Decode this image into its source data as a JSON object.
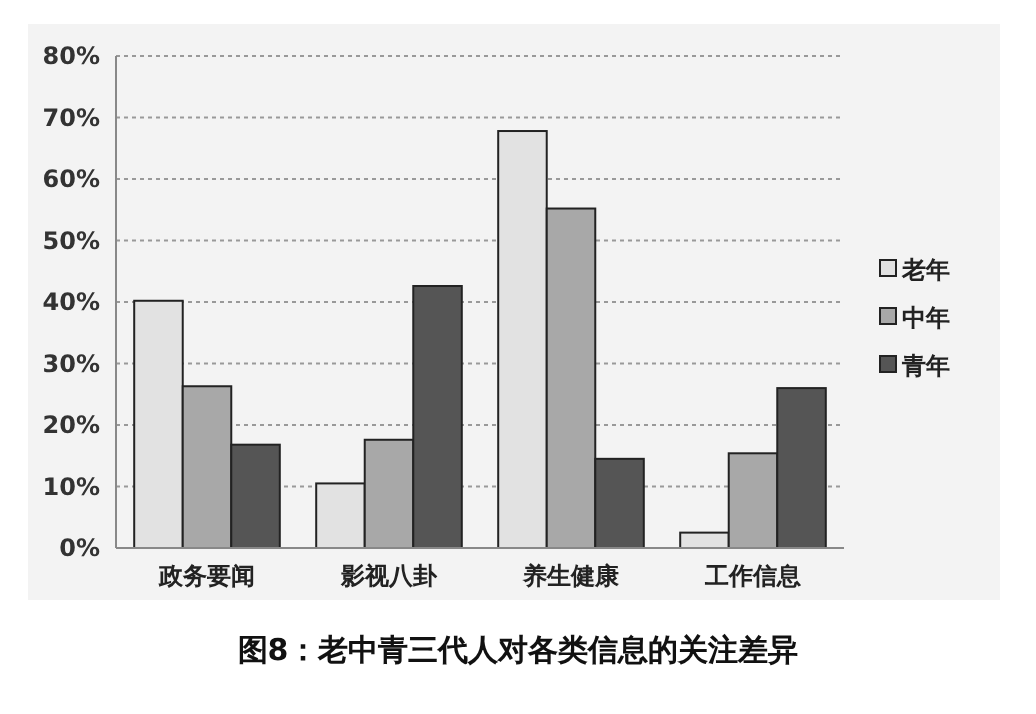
{
  "chart_data": {
    "type": "bar",
    "title": "图8：老中青三代人对各类信息的关注差异",
    "categories": [
      "政务要闻",
      "影视八卦",
      "养生健康",
      "工作信息"
    ],
    "series": [
      {
        "name": "老年",
        "color": "#e2e2e2",
        "values": [
          40.2,
          10.5,
          67.8,
          2.5
        ]
      },
      {
        "name": "中年",
        "color": "#a8a8a8",
        "values": [
          26.3,
          17.6,
          55.2,
          15.4
        ]
      },
      {
        "name": "青年",
        "color": "#555555",
        "values": [
          16.8,
          42.6,
          14.5,
          26
        ]
      }
    ],
    "ylim": [
      0,
      80
    ],
    "yticks": [
      {
        "value": 0,
        "label": "0%"
      },
      {
        "value": 10,
        "label": "10%"
      },
      {
        "value": 20,
        "label": "20%"
      },
      {
        "value": 30,
        "label": "30%"
      },
      {
        "value": 40,
        "label": "40%"
      },
      {
        "value": 50,
        "label": "50%"
      },
      {
        "value": 60,
        "label": "60%"
      },
      {
        "value": 70,
        "label": "70%"
      },
      {
        "value": 80,
        "label": "80%"
      }
    ],
    "grid": "y",
    "legend": "right"
  }
}
